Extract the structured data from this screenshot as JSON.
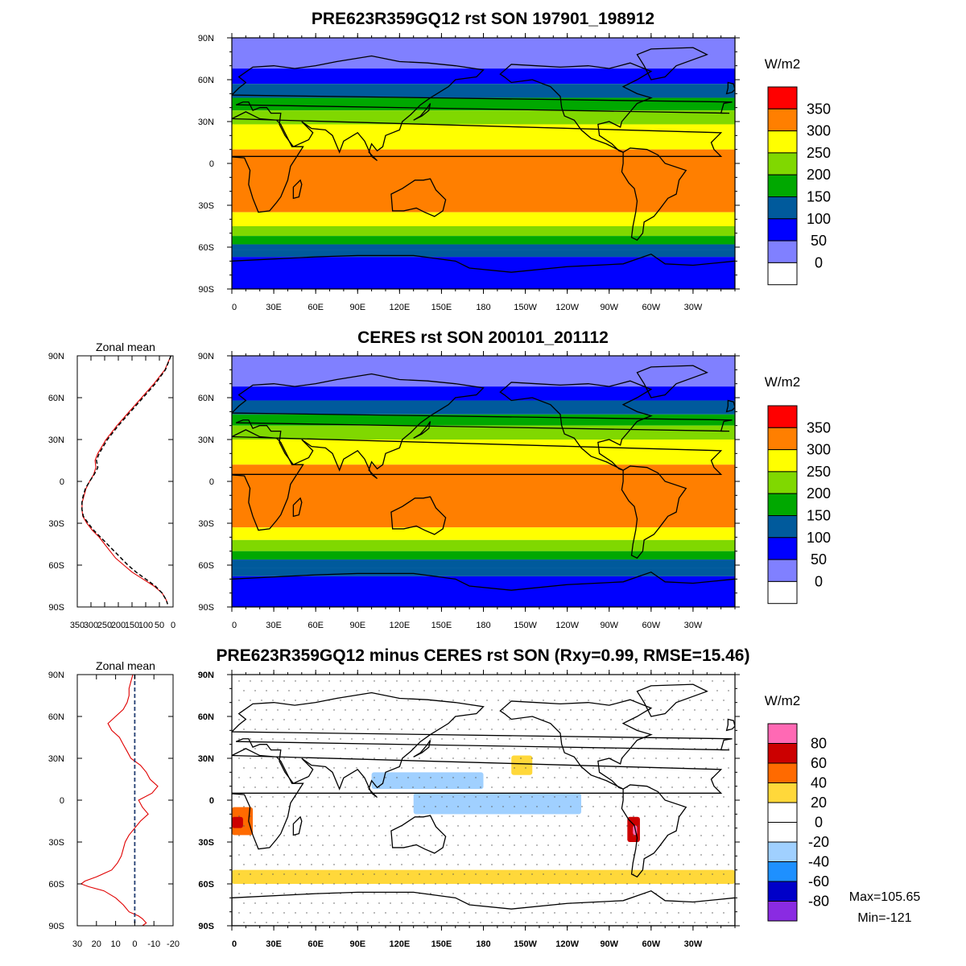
{
  "chart_data": [
    {
      "type": "heatmap",
      "title": "PRE623R359GQ12 rst SON 197901_198912",
      "x_ticks": [
        "0",
        "30E",
        "60E",
        "90E",
        "120E",
        "150E",
        "180",
        "150W",
        "120W",
        "90W",
        "60W",
        "30W"
      ],
      "y_ticks": [
        "90N",
        "60N",
        "30N",
        "0",
        "30S",
        "60S",
        "90S"
      ],
      "colorbar": {
        "unit": "W/m2",
        "levels": [
          "350",
          "300",
          "250",
          "200",
          "150",
          "100",
          "50",
          "0"
        ],
        "colors": [
          "#ff0000",
          "#ff7f00",
          "#ffff00",
          "#80d800",
          "#00a800",
          "#005a9c",
          "#0000ff",
          "#8080ff",
          "#ffffff"
        ]
      },
      "zonal_bands": [
        {
          "lat": [
            90,
            68
          ],
          "value": 25
        },
        {
          "lat": [
            68,
            57
          ],
          "value": 75
        },
        {
          "lat": [
            57,
            47
          ],
          "value": 125
        },
        {
          "lat": [
            47,
            38
          ],
          "value": 175
        },
        {
          "lat": [
            38,
            28
          ],
          "value": 225
        },
        {
          "lat": [
            28,
            10
          ],
          "value": 275
        },
        {
          "lat": [
            10,
            -35
          ],
          "value": 310
        },
        {
          "lat": [
            -35,
            -45
          ],
          "value": 275
        },
        {
          "lat": [
            -45,
            -52
          ],
          "value": 225
        },
        {
          "lat": [
            -52,
            -58
          ],
          "value": 175
        },
        {
          "lat": [
            -58,
            -62
          ],
          "value": 125
        },
        {
          "lat": [
            -62,
            -67
          ],
          "value": 100
        },
        {
          "lat": [
            -67,
            -90
          ],
          "value": 75
        }
      ]
    },
    {
      "type": "heatmap",
      "title": "CERES rst SON 200101_201112",
      "x_ticks": [
        "0",
        "30E",
        "60E",
        "90E",
        "120E",
        "150E",
        "180",
        "150W",
        "120W",
        "90W",
        "60W",
        "30W"
      ],
      "y_ticks": [
        "90N",
        "60N",
        "30N",
        "0",
        "30S",
        "60S",
        "90S"
      ],
      "colorbar": {
        "unit": "W/m2",
        "levels": [
          "350",
          "300",
          "250",
          "200",
          "150",
          "100",
          "50",
          "0"
        ],
        "colors": [
          "#ff0000",
          "#ff7f00",
          "#ffff00",
          "#80d800",
          "#00a800",
          "#005a9c",
          "#0000ff",
          "#8080ff",
          "#ffffff"
        ]
      },
      "zonal_bands": [
        {
          "lat": [
            90,
            68
          ],
          "value": 25
        },
        {
          "lat": [
            68,
            58
          ],
          "value": 75
        },
        {
          "lat": [
            58,
            48
          ],
          "value": 125
        },
        {
          "lat": [
            48,
            40
          ],
          "value": 175
        },
        {
          "lat": [
            40,
            30
          ],
          "value": 225
        },
        {
          "lat": [
            30,
            12
          ],
          "value": 275
        },
        {
          "lat": [
            12,
            -33
          ],
          "value": 310
        },
        {
          "lat": [
            -33,
            -42
          ],
          "value": 275
        },
        {
          "lat": [
            -42,
            -50
          ],
          "value": 225
        },
        {
          "lat": [
            -50,
            -56
          ],
          "value": 175
        },
        {
          "lat": [
            -56,
            -62
          ],
          "value": 125
        },
        {
          "lat": [
            -62,
            -68
          ],
          "value": 100
        },
        {
          "lat": [
            -68,
            -90
          ],
          "value": 75
        }
      ]
    },
    {
      "type": "heatmap",
      "title": "PRE623R359GQ12 minus CERES rst SON (Rxy=0.99, RMSE=15.46)",
      "x_ticks": [
        "0",
        "30E",
        "60E",
        "90E",
        "120E",
        "150E",
        "180",
        "150W",
        "120W",
        "90W",
        "60W",
        "30W"
      ],
      "y_ticks": [
        "90N",
        "60N",
        "30N",
        "0",
        "30S",
        "60S",
        "90S"
      ],
      "colorbar": {
        "unit": "W/m2",
        "levels": [
          "80",
          "60",
          "40",
          "20",
          "0",
          "-20",
          "-40",
          "-60",
          "-80"
        ],
        "colors": [
          "#ff69b4",
          "#cc0000",
          "#ff6a00",
          "#ffd83a",
          "#ffffff",
          "#ffffff",
          "#a0d0ff",
          "#1e90ff",
          "#0000c8",
          "#8a2be2"
        ]
      },
      "stats": {
        "max": "Max=105.65",
        "min": "Min=-121"
      },
      "anomaly_patches": [
        {
          "lon": [
            0,
            15
          ],
          "lat": [
            -25,
            -5
          ],
          "value": 50
        },
        {
          "lon": [
            0,
            8
          ],
          "lat": [
            -20,
            -12
          ],
          "value": 70
        },
        {
          "lon": [
            283,
            292
          ],
          "lat": [
            -30,
            -12
          ],
          "value": 70
        },
        {
          "lon": [
            287,
            290
          ],
          "lat": [
            -25,
            -18
          ],
          "value": 90
        },
        {
          "lon": [
            0,
            360
          ],
          "lat": [
            -60,
            -50
          ],
          "value": 25
        },
        {
          "lon": [
            130,
            250
          ],
          "lat": [
            -10,
            5
          ],
          "value": -25
        },
        {
          "lon": [
            100,
            180
          ],
          "lat": [
            8,
            20
          ],
          "value": -25
        },
        {
          "lon": [
            200,
            215
          ],
          "lat": [
            18,
            32
          ],
          "value": 25
        }
      ]
    },
    {
      "type": "line",
      "title": "Zonal mean",
      "y_ticks": [
        "90N",
        "60N",
        "30N",
        "0",
        "30S",
        "60S",
        "90S"
      ],
      "x_ticks": [
        "350",
        "300",
        "250",
        "200",
        "150",
        "100",
        "50",
        "0"
      ],
      "xlim": [
        350,
        0
      ],
      "ylim": [
        -90,
        90
      ],
      "series": [
        {
          "color": "#e00000",
          "dash": "solid",
          "lat": [
            90,
            80,
            70,
            60,
            50,
            40,
            30,
            20,
            15,
            10,
            5,
            0,
            -5,
            -10,
            -15,
            -20,
            -25,
            -30,
            -35,
            -40,
            -45,
            -50,
            -55,
            -60,
            -65,
            -70,
            -75,
            -80,
            -85,
            -88
          ],
          "values": [
            8,
            30,
            70,
            115,
            160,
            205,
            245,
            275,
            285,
            282,
            290,
            305,
            318,
            325,
            332,
            333,
            330,
            315,
            295,
            270,
            250,
            230,
            210,
            180,
            150,
            110,
            70,
            40,
            25,
            20
          ]
        },
        {
          "color": "#000000",
          "dash": "dashed",
          "lat": [
            90,
            80,
            70,
            60,
            50,
            40,
            30,
            20,
            15,
            10,
            5,
            0,
            -5,
            -10,
            -15,
            -20,
            -25,
            -30,
            -35,
            -40,
            -45,
            -50,
            -55,
            -60,
            -65,
            -70,
            -75,
            -80,
            -85,
            -88
          ],
          "values": [
            8,
            28,
            65,
            110,
            155,
            200,
            240,
            270,
            280,
            275,
            288,
            305,
            320,
            328,
            333,
            333,
            328,
            310,
            290,
            265,
            240,
            215,
            190,
            165,
            135,
            100,
            65,
            40,
            25,
            20
          ]
        }
      ]
    },
    {
      "type": "line",
      "title": "Zonal mean",
      "y_ticks": [
        "90N",
        "60N",
        "30N",
        "0",
        "30S",
        "60S",
        "90S"
      ],
      "x_ticks": [
        "30",
        "20",
        "10",
        "0",
        "-10",
        "-20"
      ],
      "xlim": [
        30,
        -20
      ],
      "ylim": [
        -90,
        90
      ],
      "series": [
        {
          "color": "#e00000",
          "dash": "solid",
          "lat": [
            90,
            85,
            80,
            75,
            70,
            65,
            60,
            55,
            50,
            45,
            40,
            35,
            30,
            25,
            20,
            15,
            10,
            5,
            0,
            -5,
            -10,
            -15,
            -20,
            -25,
            -30,
            -35,
            -40,
            -45,
            -50,
            -55,
            -58,
            -60,
            -62,
            -65,
            -70,
            -75,
            -80,
            -83,
            -85,
            -88,
            -90
          ],
          "values": [
            1,
            2,
            3,
            3,
            4,
            6,
            10,
            14,
            12,
            8,
            6,
            4,
            2,
            -3,
            -6,
            -8,
            -12,
            -9,
            -2,
            -4,
            -7,
            -3,
            0,
            3,
            5,
            6,
            7,
            9,
            12,
            20,
            26,
            28,
            24,
            16,
            10,
            6,
            3,
            -2,
            -4,
            -6,
            -4
          ]
        },
        {
          "color": "#000000",
          "dash": "dashed",
          "lat": [
            90,
            -90
          ],
          "values": [
            0,
            0
          ]
        },
        {
          "color": "#1e3c78",
          "dash": "dashed",
          "lat": [
            90,
            -90
          ],
          "values": [
            0,
            0
          ]
        }
      ]
    }
  ]
}
